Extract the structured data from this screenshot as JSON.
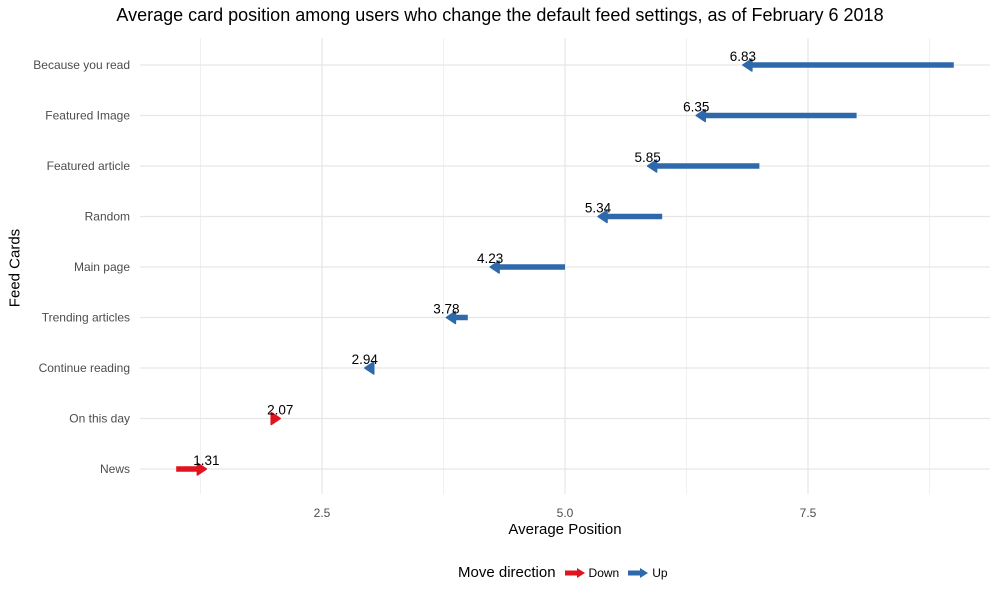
{
  "chart_data": {
    "type": "arrow",
    "title": "Average card position among users who change the default feed settings, as of February 6 2018",
    "xlabel": "Average Position",
    "ylabel": "Feed Cards",
    "xlim": [
      0.6,
      9.3
    ],
    "x_ticks": [
      "2.5",
      "5.0",
      "7.5"
    ],
    "x_tick_values": [
      2.5,
      5.0,
      7.5
    ],
    "grid": true,
    "legend_position": "bottom",
    "legend_title": "Move direction",
    "directions": [
      {
        "name": "Down",
        "color": "#e0141e"
      },
      {
        "name": "Up",
        "color": "#2e6aab"
      }
    ],
    "categories": [
      "Because you read",
      "Featured Image",
      "Featured article",
      "Random",
      "Main page",
      "Trending articles",
      "Continue reading",
      "On this day",
      "News"
    ],
    "default_position": [
      9,
      8,
      7,
      6,
      5,
      4,
      3,
      2,
      1
    ],
    "average_position": [
      6.83,
      6.35,
      5.85,
      5.34,
      4.23,
      3.78,
      2.94,
      2.07,
      1.31
    ],
    "labels": [
      "6.83",
      "6.35",
      "5.85",
      "5.34",
      "4.23",
      "3.78",
      "2.94",
      "2.07",
      "1.31"
    ],
    "direction": [
      "Up",
      "Up",
      "Up",
      "Up",
      "Up",
      "Up",
      "Up",
      "Down",
      "Down"
    ]
  }
}
